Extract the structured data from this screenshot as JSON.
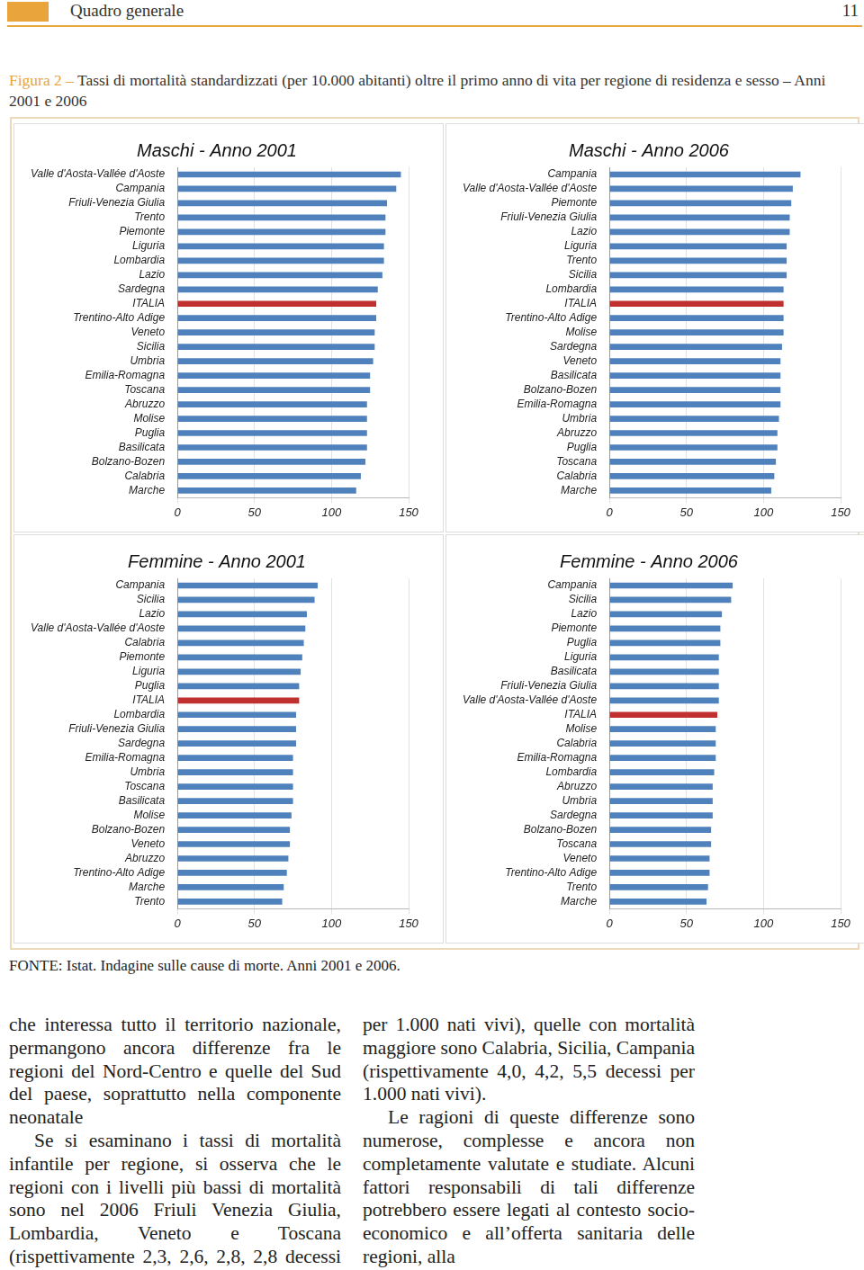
{
  "header": {
    "title": "Quadro generale",
    "page": "11"
  },
  "figure": {
    "label": "Figura 2 –",
    "caption": "Tassi di mortalità standardizzati (per 10.000 abitanti) oltre il primo anno di vita per regione di residenza e sesso – Anni 2001 e 2006"
  },
  "chart_data": [
    {
      "type": "bar",
      "title": "Maschi - Anno 2001",
      "orientation": "horizontal",
      "grid": true,
      "categories": [
        "Valle d'Aosta-Vallée d'Aoste",
        "Campania",
        "Friuli-Venezia Giulia",
        "Trento",
        "Piemonte",
        "Liguria",
        "Lombardia",
        "Lazio",
        "Sardegna",
        "ITALIA",
        "Trentino-Alto Adige",
        "Veneto",
        "Sicilia",
        "Umbria",
        "Emilia-Romagna",
        "Toscana",
        "Abruzzo",
        "Molise",
        "Puglia",
        "Basilicata",
        "Bolzano-Bozen",
        "Calabria",
        "Marche"
      ],
      "values": [
        145,
        142,
        136,
        135,
        135,
        134,
        134,
        133,
        130,
        129,
        129,
        128,
        128,
        127,
        125,
        125,
        123,
        123,
        123,
        123,
        122,
        119,
        116
      ],
      "colors": [
        "#4f81bd",
        "#4f81bd",
        "#4f81bd",
        "#4f81bd",
        "#4f81bd",
        "#4f81bd",
        "#4f81bd",
        "#4f81bd",
        "#4f81bd",
        "#c0302f",
        "#4f81bd",
        "#4f81bd",
        "#4f81bd",
        "#4f81bd",
        "#4f81bd",
        "#4f81bd",
        "#4f81bd",
        "#4f81bd",
        "#4f81bd",
        "#4f81bd",
        "#4f81bd",
        "#4f81bd",
        "#4f81bd"
      ],
      "xlim": [
        0,
        150
      ],
      "xticks": [
        0,
        50,
        100,
        150
      ]
    },
    {
      "type": "bar",
      "title": "Maschi - Anno 2006",
      "orientation": "horizontal",
      "grid": true,
      "categories": [
        "Campania",
        "Valle d'Aosta-Vallée d'Aoste",
        "Piemonte",
        "Friuli-Venezia Giulia",
        "Lazio",
        "Liguria",
        "Trento",
        "Sicilia",
        "Lombardia",
        "ITALIA",
        "Trentino-Alto Adige",
        "Molise",
        "Sardegna",
        "Veneto",
        "Basilicata",
        "Bolzano-Bozen",
        "Emilia-Romagna",
        "Umbria",
        "Abruzzo",
        "Puglia",
        "Toscana",
        "Calabria",
        "Marche"
      ],
      "values": [
        124,
        119,
        118,
        117,
        117,
        115,
        115,
        115,
        113,
        113,
        113,
        113,
        112,
        111,
        111,
        111,
        111,
        110,
        109,
        109,
        108,
        107,
        105
      ],
      "colors": [
        "#4f81bd",
        "#4f81bd",
        "#4f81bd",
        "#4f81bd",
        "#4f81bd",
        "#4f81bd",
        "#4f81bd",
        "#4f81bd",
        "#4f81bd",
        "#c0302f",
        "#4f81bd",
        "#4f81bd",
        "#4f81bd",
        "#4f81bd",
        "#4f81bd",
        "#4f81bd",
        "#4f81bd",
        "#4f81bd",
        "#4f81bd",
        "#4f81bd",
        "#4f81bd",
        "#4f81bd",
        "#4f81bd"
      ],
      "xlim": [
        0,
        150
      ],
      "xticks": [
        0,
        50,
        100,
        150
      ]
    },
    {
      "type": "bar",
      "title": "Femmine - Anno 2001",
      "orientation": "horizontal",
      "grid": true,
      "categories": [
        "Campania",
        "Sicilia",
        "Lazio",
        "Valle d'Aosta-Vallée d'Aoste",
        "Calabria",
        "Piemonte",
        "Liguria",
        "Puglia",
        "ITALIA",
        "Lombardia",
        "Friuli-Venezia Giulia",
        "Sardegna",
        "Emilia-Romagna",
        "Umbria",
        "Toscana",
        "Basilicata",
        "Molise",
        "Bolzano-Bozen",
        "Veneto",
        "Abruzzo",
        "Trentino-Alto Adige",
        "Marche",
        "Trento"
      ],
      "values": [
        91,
        89,
        84,
        83,
        82,
        81,
        80,
        79,
        79,
        77,
        77,
        77,
        75,
        75,
        75,
        75,
        74,
        73,
        73,
        72,
        71,
        69,
        68
      ],
      "colors": [
        "#4f81bd",
        "#4f81bd",
        "#4f81bd",
        "#4f81bd",
        "#4f81bd",
        "#4f81bd",
        "#4f81bd",
        "#4f81bd",
        "#c0302f",
        "#4f81bd",
        "#4f81bd",
        "#4f81bd",
        "#4f81bd",
        "#4f81bd",
        "#4f81bd",
        "#4f81bd",
        "#4f81bd",
        "#4f81bd",
        "#4f81bd",
        "#4f81bd",
        "#4f81bd",
        "#4f81bd",
        "#4f81bd"
      ],
      "xlim": [
        0,
        150
      ],
      "xticks": [
        0,
        50,
        100,
        150
      ]
    },
    {
      "type": "bar",
      "title": "Femmine - Anno 2006",
      "orientation": "horizontal",
      "grid": true,
      "categories": [
        "Campania",
        "Sicilia",
        "Lazio",
        "Piemonte",
        "Puglia",
        "Liguria",
        "Basilicata",
        "Friuli-Venezia Giulia",
        "Valle d'Aosta-Vallée d'Aoste",
        "ITALIA",
        "Molise",
        "Calabria",
        "Emilia-Romagna",
        "Lombardia",
        "Abruzzo",
        "Umbria",
        "Sardegna",
        "Bolzano-Bozen",
        "Toscana",
        "Veneto",
        "Trentino-Alto Adige",
        "Trento",
        "Marche"
      ],
      "values": [
        80,
        79,
        73,
        72,
        72,
        71,
        71,
        71,
        71,
        70,
        69,
        69,
        69,
        68,
        67,
        67,
        67,
        66,
        66,
        65,
        65,
        64,
        63
      ],
      "colors": [
        "#4f81bd",
        "#4f81bd",
        "#4f81bd",
        "#4f81bd",
        "#4f81bd",
        "#4f81bd",
        "#4f81bd",
        "#4f81bd",
        "#4f81bd",
        "#c0302f",
        "#4f81bd",
        "#4f81bd",
        "#4f81bd",
        "#4f81bd",
        "#4f81bd",
        "#4f81bd",
        "#4f81bd",
        "#4f81bd",
        "#4f81bd",
        "#4f81bd",
        "#4f81bd",
        "#4f81bd",
        "#4f81bd"
      ],
      "xlim": [
        0,
        150
      ],
      "xticks": [
        0,
        50,
        100,
        150
      ]
    }
  ],
  "source": "FONTE: Istat. Indagine sulle cause di morte. Anni 2001 e 2006.",
  "body": {
    "paragraphs": [
      "che interessa tutto il territorio nazionale, permangono ancora differenze fra le regioni del Nord-Centro e quelle del Sud del paese, soprattutto nella componente neonatale",
      "Se si esaminano i tassi di mortalità infantile per regione, si osserva che le regioni con i livelli più bassi di mortalità sono nel 2006 Friuli Venezia Giulia, Lombardia, Veneto e Toscana (rispettivamente 2,3, 2,6, 2,8, 2,8 decessi per 1.000 nati vivi), quelle con mortalità maggiore sono Calabria, Sicilia, Campania (rispettivamente 4,0, 4,2, 5,5 decessi per 1.000 nati vivi).",
      "Le ragioni di queste differenze sono numerose, complesse e ancora non completamente valutate e studiate. Alcuni fattori responsabili di tali differenze potrebbero essere legati al contesto socio-economico e all’offerta sanitaria delle regioni, alla"
    ]
  }
}
